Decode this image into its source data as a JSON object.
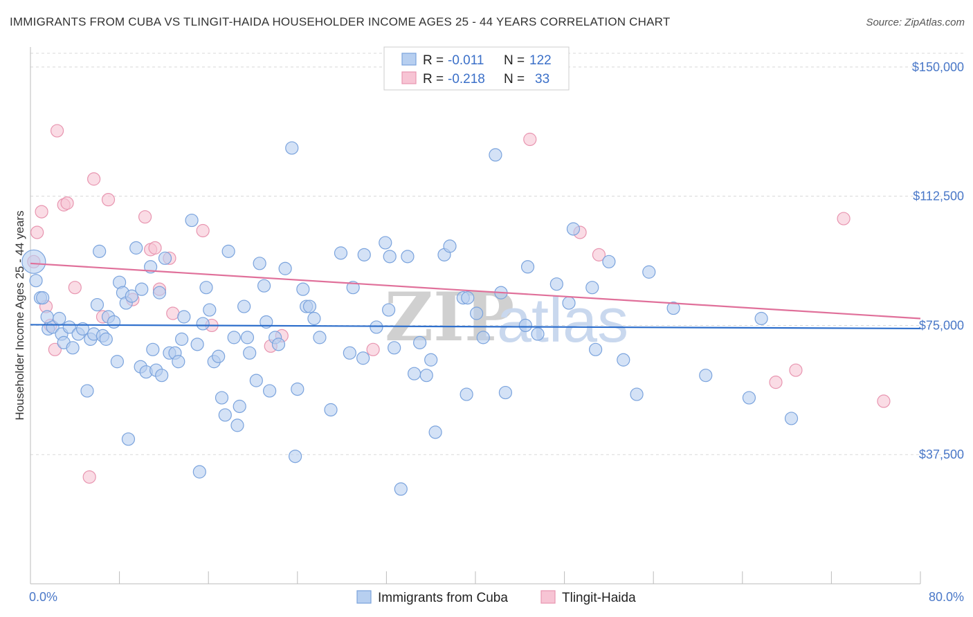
{
  "title": "IMMIGRANTS FROM CUBA VS TLINGIT-HAIDA HOUSEHOLDER INCOME AGES 25 - 44 YEARS CORRELATION CHART",
  "source": "Source: ZipAtlas.com",
  "watermark": {
    "zip": "ZIP",
    "atlas": "atlas"
  },
  "colors": {
    "blue_fill": "#b7cff0",
    "blue_stroke": "#7aa3dd",
    "blue_line": "#2e6fcc",
    "pink_fill": "#f7c4d4",
    "pink_stroke": "#e895b0",
    "pink_line": "#e0709a",
    "grid": "#d8d8d8",
    "tick_text": "#4a78c8"
  },
  "chart_data": {
    "type": "scatter",
    "ylabel": "Householder Income Ages 25 - 44 years",
    "xlim": [
      0,
      80
    ],
    "ylim": [
      0,
      155000
    ],
    "x_tick_labels": [
      "0.0%",
      "80.0%"
    ],
    "y_ticks": [
      {
        "value": 37500,
        "label": "$37,500"
      },
      {
        "value": 75000,
        "label": "$75,000"
      },
      {
        "value": 112500,
        "label": "$112,500"
      },
      {
        "value": 150000,
        "label": "$150,000"
      }
    ],
    "legend": [
      {
        "r_label": "R = ",
        "r_value": "-0.011",
        "n_label": "N = ",
        "n_value": "122"
      },
      {
        "r_label": "R = ",
        "r_value": "-0.218",
        "n_label": "N = ",
        "n_value": "33"
      }
    ],
    "series": [
      {
        "name": "Immigrants from Cuba",
        "trend": [
          [
            0,
            75200
          ],
          [
            80,
            74100
          ]
        ],
        "points": [
          [
            0.3,
            93500
          ],
          [
            0.5,
            88000
          ],
          [
            0.9,
            83000
          ],
          [
            1.1,
            83000
          ],
          [
            1.5,
            77500
          ],
          [
            1.6,
            74000
          ],
          [
            2.0,
            74500
          ],
          [
            2.6,
            77000
          ],
          [
            2.8,
            72500
          ],
          [
            3.0,
            70000
          ],
          [
            3.5,
            74500
          ],
          [
            3.8,
            68500
          ],
          [
            4.3,
            72500
          ],
          [
            4.7,
            74000
          ],
          [
            5.1,
            56000
          ],
          [
            5.4,
            71000
          ],
          [
            5.7,
            72500
          ],
          [
            6.0,
            81000
          ],
          [
            6.2,
            96500
          ],
          [
            6.5,
            72000
          ],
          [
            6.8,
            71000
          ],
          [
            7.0,
            77500
          ],
          [
            7.5,
            76000
          ],
          [
            7.8,
            64500
          ],
          [
            8.0,
            87500
          ],
          [
            8.3,
            84500
          ],
          [
            8.6,
            81500
          ],
          [
            8.8,
            42000
          ],
          [
            9.1,
            83500
          ],
          [
            9.5,
            97500
          ],
          [
            9.9,
            63000
          ],
          [
            10.0,
            85500
          ],
          [
            10.4,
            61500
          ],
          [
            10.8,
            92000
          ],
          [
            11.0,
            68000
          ],
          [
            11.3,
            62000
          ],
          [
            11.6,
            84500
          ],
          [
            11.8,
            60500
          ],
          [
            12.1,
            94500
          ],
          [
            12.5,
            67000
          ],
          [
            13.0,
            67000
          ],
          [
            13.3,
            64500
          ],
          [
            13.6,
            71000
          ],
          [
            13.8,
            77500
          ],
          [
            14.5,
            105500
          ],
          [
            15.0,
            69500
          ],
          [
            15.2,
            32500
          ],
          [
            15.5,
            75500
          ],
          [
            15.8,
            86000
          ],
          [
            16.1,
            79500
          ],
          [
            16.5,
            64500
          ],
          [
            16.9,
            66000
          ],
          [
            17.2,
            54000
          ],
          [
            17.5,
            49000
          ],
          [
            17.8,
            96500
          ],
          [
            18.3,
            71500
          ],
          [
            18.6,
            46000
          ],
          [
            18.8,
            51500
          ],
          [
            19.2,
            80500
          ],
          [
            19.5,
            71500
          ],
          [
            19.7,
            67000
          ],
          [
            20.3,
            59000
          ],
          [
            20.6,
            93000
          ],
          [
            21.0,
            86500
          ],
          [
            21.2,
            76000
          ],
          [
            21.5,
            56000
          ],
          [
            22.0,
            71500
          ],
          [
            22.3,
            69500
          ],
          [
            22.9,
            91500
          ],
          [
            23.5,
            126500
          ],
          [
            23.8,
            37000
          ],
          [
            24.0,
            56500
          ],
          [
            24.5,
            85500
          ],
          [
            24.8,
            80500
          ],
          [
            25.1,
            80500
          ],
          [
            25.5,
            77000
          ],
          [
            26.0,
            71500
          ],
          [
            27.0,
            50500
          ],
          [
            27.9,
            96000
          ],
          [
            28.7,
            67000
          ],
          [
            29.0,
            86000
          ],
          [
            29.9,
            65500
          ],
          [
            30.0,
            95500
          ],
          [
            31.1,
            74500
          ],
          [
            31.9,
            99000
          ],
          [
            32.2,
            79500
          ],
          [
            32.3,
            95000
          ],
          [
            32.7,
            68500
          ],
          [
            33.3,
            27500
          ],
          [
            33.9,
            95000
          ],
          [
            34.5,
            61000
          ],
          [
            35.0,
            70000
          ],
          [
            35.6,
            60500
          ],
          [
            36.0,
            65000
          ],
          [
            36.4,
            44000
          ],
          [
            37.2,
            95500
          ],
          [
            37.7,
            98000
          ],
          [
            38.9,
            83000
          ],
          [
            39.2,
            55000
          ],
          [
            39.3,
            83000
          ],
          [
            40.1,
            78500
          ],
          [
            40.7,
            71500
          ],
          [
            41.8,
            124500
          ],
          [
            42.3,
            84500
          ],
          [
            42.7,
            55500
          ],
          [
            44.5,
            75000
          ],
          [
            44.7,
            92000
          ],
          [
            45.6,
            72500
          ],
          [
            47.3,
            87000
          ],
          [
            48.4,
            81500
          ],
          [
            48.8,
            103000
          ],
          [
            50.5,
            86000
          ],
          [
            50.8,
            68000
          ],
          [
            52.0,
            93500
          ],
          [
            53.3,
            65000
          ],
          [
            54.5,
            55000
          ],
          [
            55.6,
            90500
          ],
          [
            57.8,
            80000
          ],
          [
            60.7,
            60500
          ],
          [
            64.6,
            54000
          ],
          [
            65.7,
            77000
          ],
          [
            68.4,
            48000
          ]
        ]
      },
      {
        "name": "Tlingit-Haida",
        "trend": [
          [
            0,
            93000
          ],
          [
            80,
            77000
          ]
        ],
        "points": [
          [
            0.3,
            93500
          ],
          [
            0.6,
            102000
          ],
          [
            1.0,
            108000
          ],
          [
            1.4,
            80500
          ],
          [
            1.8,
            75000
          ],
          [
            2.2,
            68000
          ],
          [
            2.4,
            131500
          ],
          [
            3.0,
            110000
          ],
          [
            3.3,
            110500
          ],
          [
            4.0,
            86000
          ],
          [
            5.3,
            31000
          ],
          [
            5.7,
            117500
          ],
          [
            6.5,
            77500
          ],
          [
            7.0,
            111500
          ],
          [
            9.2,
            82500
          ],
          [
            10.3,
            106500
          ],
          [
            10.8,
            97000
          ],
          [
            11.2,
            97500
          ],
          [
            11.6,
            85500
          ],
          [
            12.5,
            94500
          ],
          [
            12.8,
            78500
          ],
          [
            15.5,
            102500
          ],
          [
            16.3,
            75000
          ],
          [
            21.6,
            69000
          ],
          [
            22.6,
            72000
          ],
          [
            30.8,
            68000
          ],
          [
            44.9,
            129000
          ],
          [
            49.4,
            102000
          ],
          [
            51.1,
            95500
          ],
          [
            67.0,
            58500
          ],
          [
            68.8,
            62000
          ],
          [
            73.1,
            106000
          ],
          [
            76.7,
            53000
          ]
        ]
      }
    ]
  }
}
